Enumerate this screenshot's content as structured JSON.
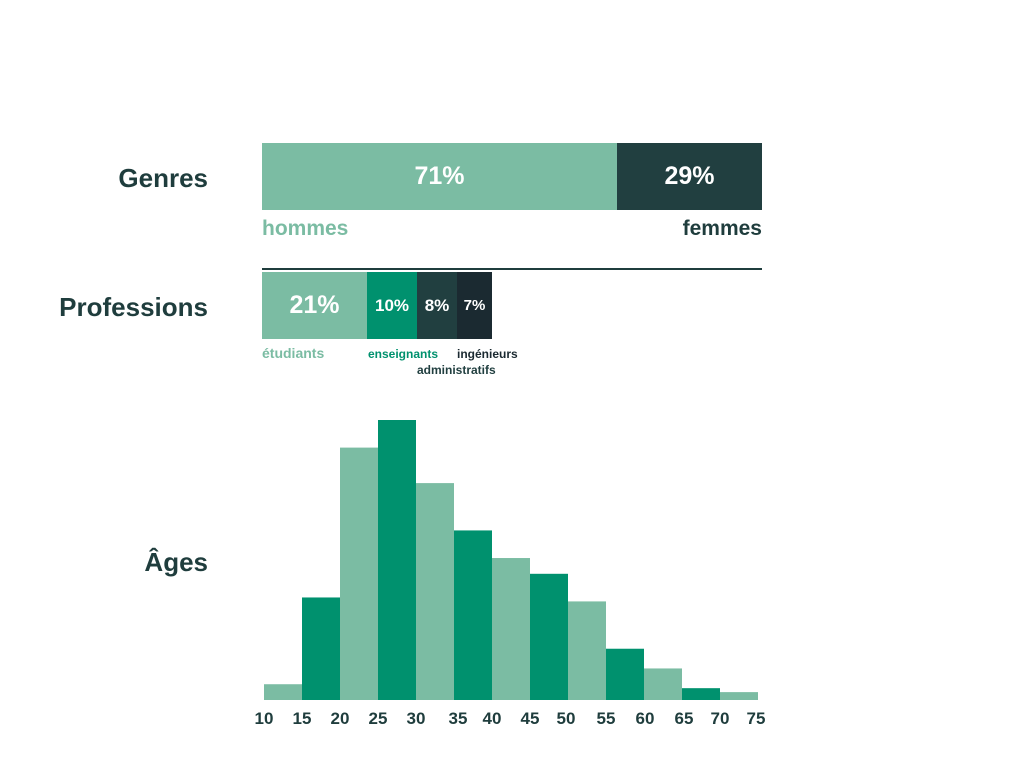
{
  "colors": {
    "light": "#7bbca3",
    "mid": "#00916e",
    "dark": "#213f40",
    "darkest": "#1b2a31",
    "text": "#1f3d3d"
  },
  "genres": {
    "label": "Genres",
    "segments": [
      {
        "value": 71,
        "text": "71%",
        "name": "hommes"
      },
      {
        "value": 29,
        "text": "29%",
        "name": "femmes"
      }
    ]
  },
  "professions": {
    "label": "Professions",
    "segments": [
      {
        "value": 21,
        "text": "21%",
        "name": "étudiants"
      },
      {
        "value": 10,
        "text": "10%",
        "name": "enseignants"
      },
      {
        "value": 8,
        "text": "8%",
        "name": "administratifs"
      },
      {
        "value": 7,
        "text": "7%",
        "name": "ingénieurs"
      }
    ]
  },
  "ages": {
    "label": "Âges"
  },
  "chart_data": {
    "type": "bar",
    "x_ticks": [
      "10",
      "15",
      "20",
      "25",
      "30",
      "35",
      "40",
      "45",
      "50",
      "55",
      "60",
      "65",
      "70",
      "75"
    ],
    "bins": [
      [
        10,
        15
      ],
      [
        15,
        20
      ],
      [
        20,
        25
      ],
      [
        25,
        30
      ],
      [
        30,
        35
      ],
      [
        35,
        40
      ],
      [
        40,
        45
      ],
      [
        45,
        50
      ],
      [
        50,
        55
      ],
      [
        55,
        60
      ],
      [
        60,
        65
      ],
      [
        65,
        70
      ],
      [
        70,
        75
      ]
    ],
    "values": [
      4,
      26,
      64,
      71,
      55,
      43,
      36,
      32,
      25,
      13,
      8,
      3,
      2
    ],
    "ylim": [
      0,
      75
    ],
    "grid": false
  }
}
